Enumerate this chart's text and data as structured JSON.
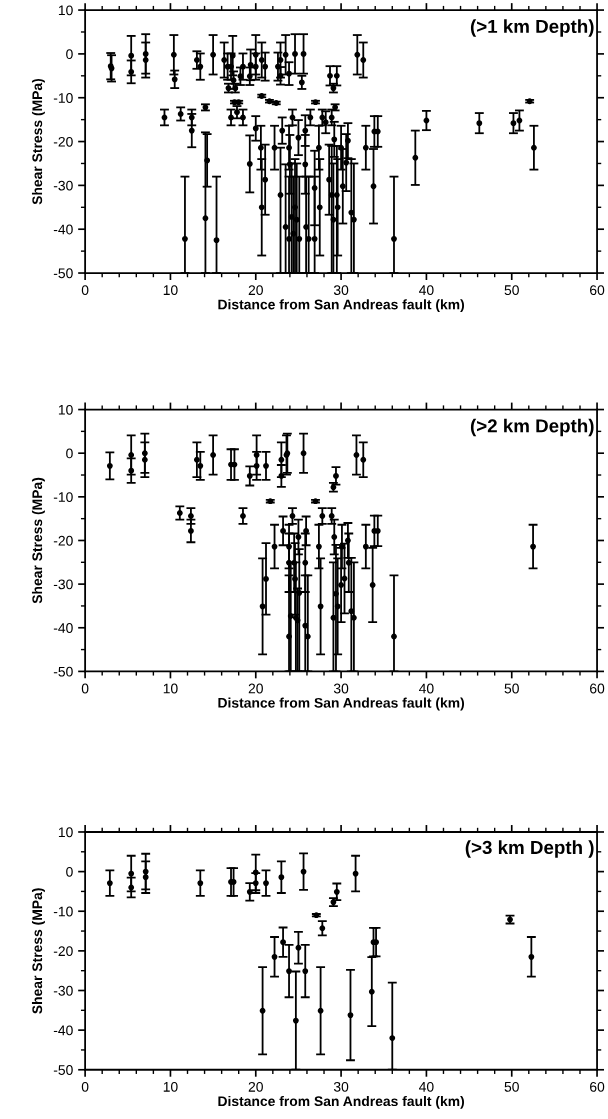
{
  "chart_data": [
    {
      "type": "scatter",
      "annotations": [
        "(>1 km Depth)"
      ],
      "xlabel": "Distance from San Andreas fault (km)",
      "ylabel": "Shear Stress (MPa)",
      "xlim": [
        0,
        60
      ],
      "ylim": [
        -50,
        10
      ],
      "xticks": [
        0,
        10,
        20,
        30,
        40,
        50,
        60
      ],
      "yticks": [
        -50,
        -40,
        -30,
        -20,
        -10,
        0,
        10
      ],
      "grid": false,
      "marker": "circle",
      "series": [
        {
          "color": "#000000",
          "x": [
            3.0,
            3.1,
            5.4,
            5.4,
            7.1,
            7.1,
            10.4,
            10.5,
            13.1,
            13.5,
            15.0,
            16.3,
            16.7,
            16.8,
            17.1,
            17.3,
            17.4,
            17.6,
            18.2,
            18.5,
            19.3,
            19.4,
            20.0,
            20.0,
            20.7,
            21.1,
            22.6,
            22.9,
            22.9,
            23.5,
            23.9,
            24.6,
            25.6,
            25.4,
            28.7,
            29.5,
            29.1,
            31.9,
            32.6,
            9.3,
            11.2,
            12.5,
            12.5,
            14.1,
            17.1,
            17.8,
            17.5,
            18.0,
            18.5,
            20.7,
            21.6,
            22.4,
            20.0,
            19.3,
            20.6,
            20.7,
            21.1,
            22.2,
            22.9,
            23.1,
            23.5,
            23.9,
            23.9,
            24.0,
            24.2,
            24.3,
            24.4,
            24.6,
            24.8,
            25.0,
            25.1,
            25.8,
            25.8,
            25.9,
            26.2,
            26.4,
            26.9,
            26.9,
            27.0,
            27.4,
            27.5,
            27.8,
            28.2,
            28.6,
            28.9,
            28.9,
            29.1,
            29.2,
            29.3,
            29.5,
            29.6,
            30.0,
            30.2,
            30.6,
            30.8,
            31.2,
            31.5,
            32.9,
            33.8,
            33.9,
            34.3,
            36.2,
            38.7,
            40.0,
            46.2,
            50.2,
            50.9,
            52.1,
            52.6,
            11.7,
            14.1,
            14.3,
            15.4
          ],
          "values": [
            -2.8,
            -3.3,
            -0.4,
            -4.1,
            0,
            -1.4,
            -0.2,
            -5.8,
            -1.4,
            -2.9,
            -0.2,
            -1.4,
            -2.9,
            -7.8,
            -2.9,
            -0.4,
            -6,
            -7.8,
            -5.1,
            -2.9,
            -5.1,
            -2.5,
            -0.2,
            -2.9,
            -1.4,
            -2.9,
            -2.9,
            -1.4,
            -5,
            -0.2,
            -4.5,
            0,
            0,
            -6.5,
            -5,
            -5,
            -7.8,
            -0.2,
            -1.4,
            -14.5,
            -13.7,
            -14.5,
            -17.5,
            -12.2,
            -14.5,
            -13.3,
            -11,
            -11,
            -14.5,
            -9.6,
            -10.8,
            -11.2,
            -17,
            -25.1,
            -21.4,
            -35,
            -28.7,
            -21.4,
            -32.2,
            -17.5,
            -39.5,
            -21.4,
            -42.2,
            -25.2,
            -37.2,
            -14.5,
            -41,
            -35,
            -37.8,
            -19.1,
            -42.2,
            -17.5,
            -25.2,
            -39.5,
            -42.2,
            -14.5,
            -30.6,
            -42.2,
            -11,
            -21.4,
            -35,
            -14.5,
            -15.6,
            -28.7,
            -14.5,
            -32.2,
            -37.8,
            -19.5,
            -12.2,
            -32.2,
            -35,
            -21.4,
            -30.2,
            -24.8,
            -19.8,
            -36.2,
            -37.8,
            -21.4,
            -30.2,
            -17.7,
            -17.7,
            -42.2,
            -23.7,
            -15.2,
            -15.8,
            -15.8,
            -15.2,
            -10.8,
            -21.4,
            -42.2,
            -37.5,
            -24.3,
            -42.5
          ],
          "errors": [
            3,
            3,
            4.5,
            2.6,
            4.5,
            4,
            4.5,
            2,
            2,
            3,
            4.5,
            4,
            3,
            1,
            3,
            4.5,
            2,
            1,
            2,
            3,
            2,
            3.5,
            4.5,
            3,
            4,
            3.2,
            3.2,
            4,
            2,
            4.5,
            2.6,
            4.5,
            4.5,
            1.5,
            2.2,
            2.2,
            1,
            4.5,
            4,
            1.8,
            1.5,
            1.8,
            3.8,
            0.7,
            1.8,
            1.4,
            0.3,
            0.3,
            1.8,
            0.3,
            0.3,
            0.3,
            2.8,
            6.5,
            5,
            11,
            8,
            5,
            [
              -50,
              -21.4
            ],
            3,
            [
              -50,
              -25.2
            ],
            5,
            [
              -50,
              -28
            ],
            6.7,
            [
              -50,
              -25
            ],
            1.8,
            [
              -50,
              -28
            ],
            [
              -50,
              -24
            ],
            [
              -50,
              -25
            ],
            4,
            [
              -50,
              -28
            ],
            3.5,
            6.7,
            [
              -50,
              -28
            ],
            [
              -50,
              -28
            ],
            1.8,
            8.5,
            [
              -50,
              -28
            ],
            0.3,
            5,
            11,
            1.8,
            2.5,
            8,
            1.8,
            [
              -50,
              -21
            ],
            [
              -50,
              -25
            ],
            4,
            0.7,
            [
              -50,
              -21
            ],
            11,
            5,
            8.5,
            6.5,
            4,
            [
              -50,
              -24
            ],
            [
              -50,
              -25
            ],
            5,
            8.5,
            3.5,
            3.5,
            [
              -50,
              -28
            ],
            6.2,
            2.2,
            2.3,
            2.3,
            2.3,
            0.3,
            5,
            [
              -50,
              -28
            ],
            [
              -50,
              -17.9
            ],
            6,
            [
              -50,
              -28
            ]
          ]
        }
      ]
    },
    {
      "type": "scatter",
      "annotations": [
        "(>2 km Depth)"
      ],
      "xlabel": "Distance from San Andreas fault (km)",
      "ylabel": "Shear Stress (MPa)",
      "xlim": [
        0,
        60
      ],
      "ylim": [
        -50,
        10
      ],
      "xticks": [
        0,
        10,
        20,
        30,
        40,
        50,
        60
      ],
      "yticks": [
        -50,
        -40,
        -30,
        -20,
        -10,
        0,
        10
      ],
      "grid": false,
      "marker": "circle",
      "series": [
        {
          "color": "#000000",
          "x": [
            2.9,
            5.4,
            5.4,
            7.0,
            7.0,
            11.1,
            12.4,
            12.4,
            13.1,
            13.5,
            15.0,
            17.1,
            17.5,
            18.5,
            19.3,
            20.1,
            20.1,
            20.8,
            21.2,
            21.2,
            21.7,
            22.2,
            23.0,
            23.0,
            23.2,
            23.6,
            23.7,
            23.9,
            23.9,
            23.9,
            24.1,
            24.3,
            24.5,
            24.6,
            24.7,
            24.9,
            25.1,
            25.0,
            25.6,
            25.8,
            25.8,
            25.9,
            26.1,
            27.0,
            27.4,
            27.6,
            27.8,
            28.9,
            29.1,
            29.4,
            29.2,
            29.1,
            29.4,
            29.6,
            30.0,
            30.1,
            30.4,
            30.8,
            30.9,
            31.2,
            31.5,
            31.8,
            32.6,
            32.9,
            33.7,
            33.9,
            34.3,
            36.2,
            52.5
          ],
          "values": [
            -2.9,
            -0.4,
            -4.0,
            0,
            -1.5,
            -13.7,
            -14.4,
            -17.8,
            -1.5,
            -2.9,
            -0.4,
            -2.6,
            -2.6,
            -14.4,
            -5.2,
            -0.4,
            -2.9,
            -35.1,
            -28.8,
            -2.9,
            -11.0,
            -21.4,
            -1.5,
            -5.2,
            -17.8,
            -0.4,
            0,
            -21.4,
            -25.1,
            -42.0,
            -37.3,
            -14.4,
            -25.1,
            -28.8,
            -37.7,
            -38.3,
            -32,
            -19.2,
            0,
            -25.1,
            -39.5,
            -17.8,
            -42.0,
            -11.0,
            -21.4,
            -35.1,
            -14.4,
            -14.4,
            -7.8,
            -5.2,
            -19.2,
            -37.7,
            -32.2,
            -35.1,
            -30.2,
            -21.4,
            -28.7,
            -20.0,
            -25.1,
            -36.2,
            -37.7,
            -0.4,
            -1.5,
            -21.4,
            -30.2,
            -17.8,
            -17.8,
            -42.0,
            -21.4
          ],
          "errors": [
            3.1,
            4.5,
            2.8,
            4.5,
            4,
            1.5,
            1.8,
            2.6,
            4,
            3.2,
            4.5,
            3.5,
            3.5,
            1.8,
            2.2,
            4.5,
            3.2,
            11,
            8.2,
            3.2,
            0.3,
            5,
            4,
            2.5,
            3.3,
            4.5,
            4.5,
            5,
            6.7,
            [
              -50,
              -28
            ],
            [
              -50,
              -25
            ],
            1.8,
            6.7,
            8.2,
            [
              -50,
              -25
            ],
            [
              -50,
              -31
            ],
            [
              -50,
              -22
            ],
            4,
            4.5,
            6.7,
            [
              -50,
              -28
            ],
            3.3,
            [
              -50,
              -28
            ],
            0.3,
            5,
            11,
            1.8,
            1.8,
            1,
            2,
            4,
            [
              -50,
              -25
            ],
            [
              -50,
              -21
            ],
            11,
            8.5,
            5,
            8,
            4,
            6.7,
            [
              -50,
              -24
            ],
            [
              -50,
              -25
            ],
            4.5,
            4,
            5,
            8.5,
            3.5,
            3.5,
            [
              -50,
              -28
            ],
            5
          ]
        }
      ]
    },
    {
      "type": "scatter",
      "annotations": [
        "(>3 km Depth )"
      ],
      "xlabel": "Distance from San Andreas fault (km)",
      "ylabel": "Shear Stress (MPa)",
      "xlim": [
        0,
        60
      ],
      "ylim": [
        -50,
        10
      ],
      "xticks": [
        0,
        10,
        20,
        30,
        40,
        50,
        60
      ],
      "yticks": [
        -50,
        -40,
        -30,
        -20,
        -10,
        0,
        10
      ],
      "grid": false,
      "marker": "circle",
      "series": [
        {
          "color": "#000000",
          "x": [
            2.9,
            5.4,
            5.4,
            7.1,
            7.1,
            13.5,
            17.1,
            17.4,
            19.3,
            20.0,
            20.0,
            21.2,
            23.0,
            25.6,
            31.7,
            20.8,
            22.2,
            23.2,
            23.9,
            24.7,
            25.0,
            25.8,
            27.1,
            27.8,
            27.6,
            29.1,
            29.5,
            31.1,
            33.6,
            33.8,
            34.1,
            36.0,
            49.8,
            52.3
          ],
          "values": [
            -2.9,
            -0.5,
            -4,
            0,
            -1.4,
            -2.9,
            -2.6,
            -2.6,
            -5.1,
            -2.9,
            -0.2,
            -2.9,
            -1.4,
            0,
            -0.5,
            -35.1,
            -21.5,
            -17.8,
            -25.1,
            -37.6,
            -19.2,
            -25.1,
            -11.0,
            -14.3,
            -35.1,
            -7.7,
            -5.1,
            -36.2,
            -30.3,
            -17.8,
            -17.8,
            -42.0,
            -12.1,
            -21.5
          ],
          "errors": [
            3.2,
            4.5,
            2.5,
            4.5,
            4,
            3.2,
            3.5,
            3.5,
            2.2,
            2.5,
            4.5,
            3.2,
            4,
            4.6,
            4.5,
            11,
            5,
            3.7,
            6.6,
            12.4,
            4,
            6.6,
            0.3,
            1.8,
            11,
            1,
            2.1,
            11.4,
            8.7,
            3.6,
            3.6,
            [
              -50,
              -28
            ],
            1,
            5
          ]
        }
      ]
    }
  ]
}
